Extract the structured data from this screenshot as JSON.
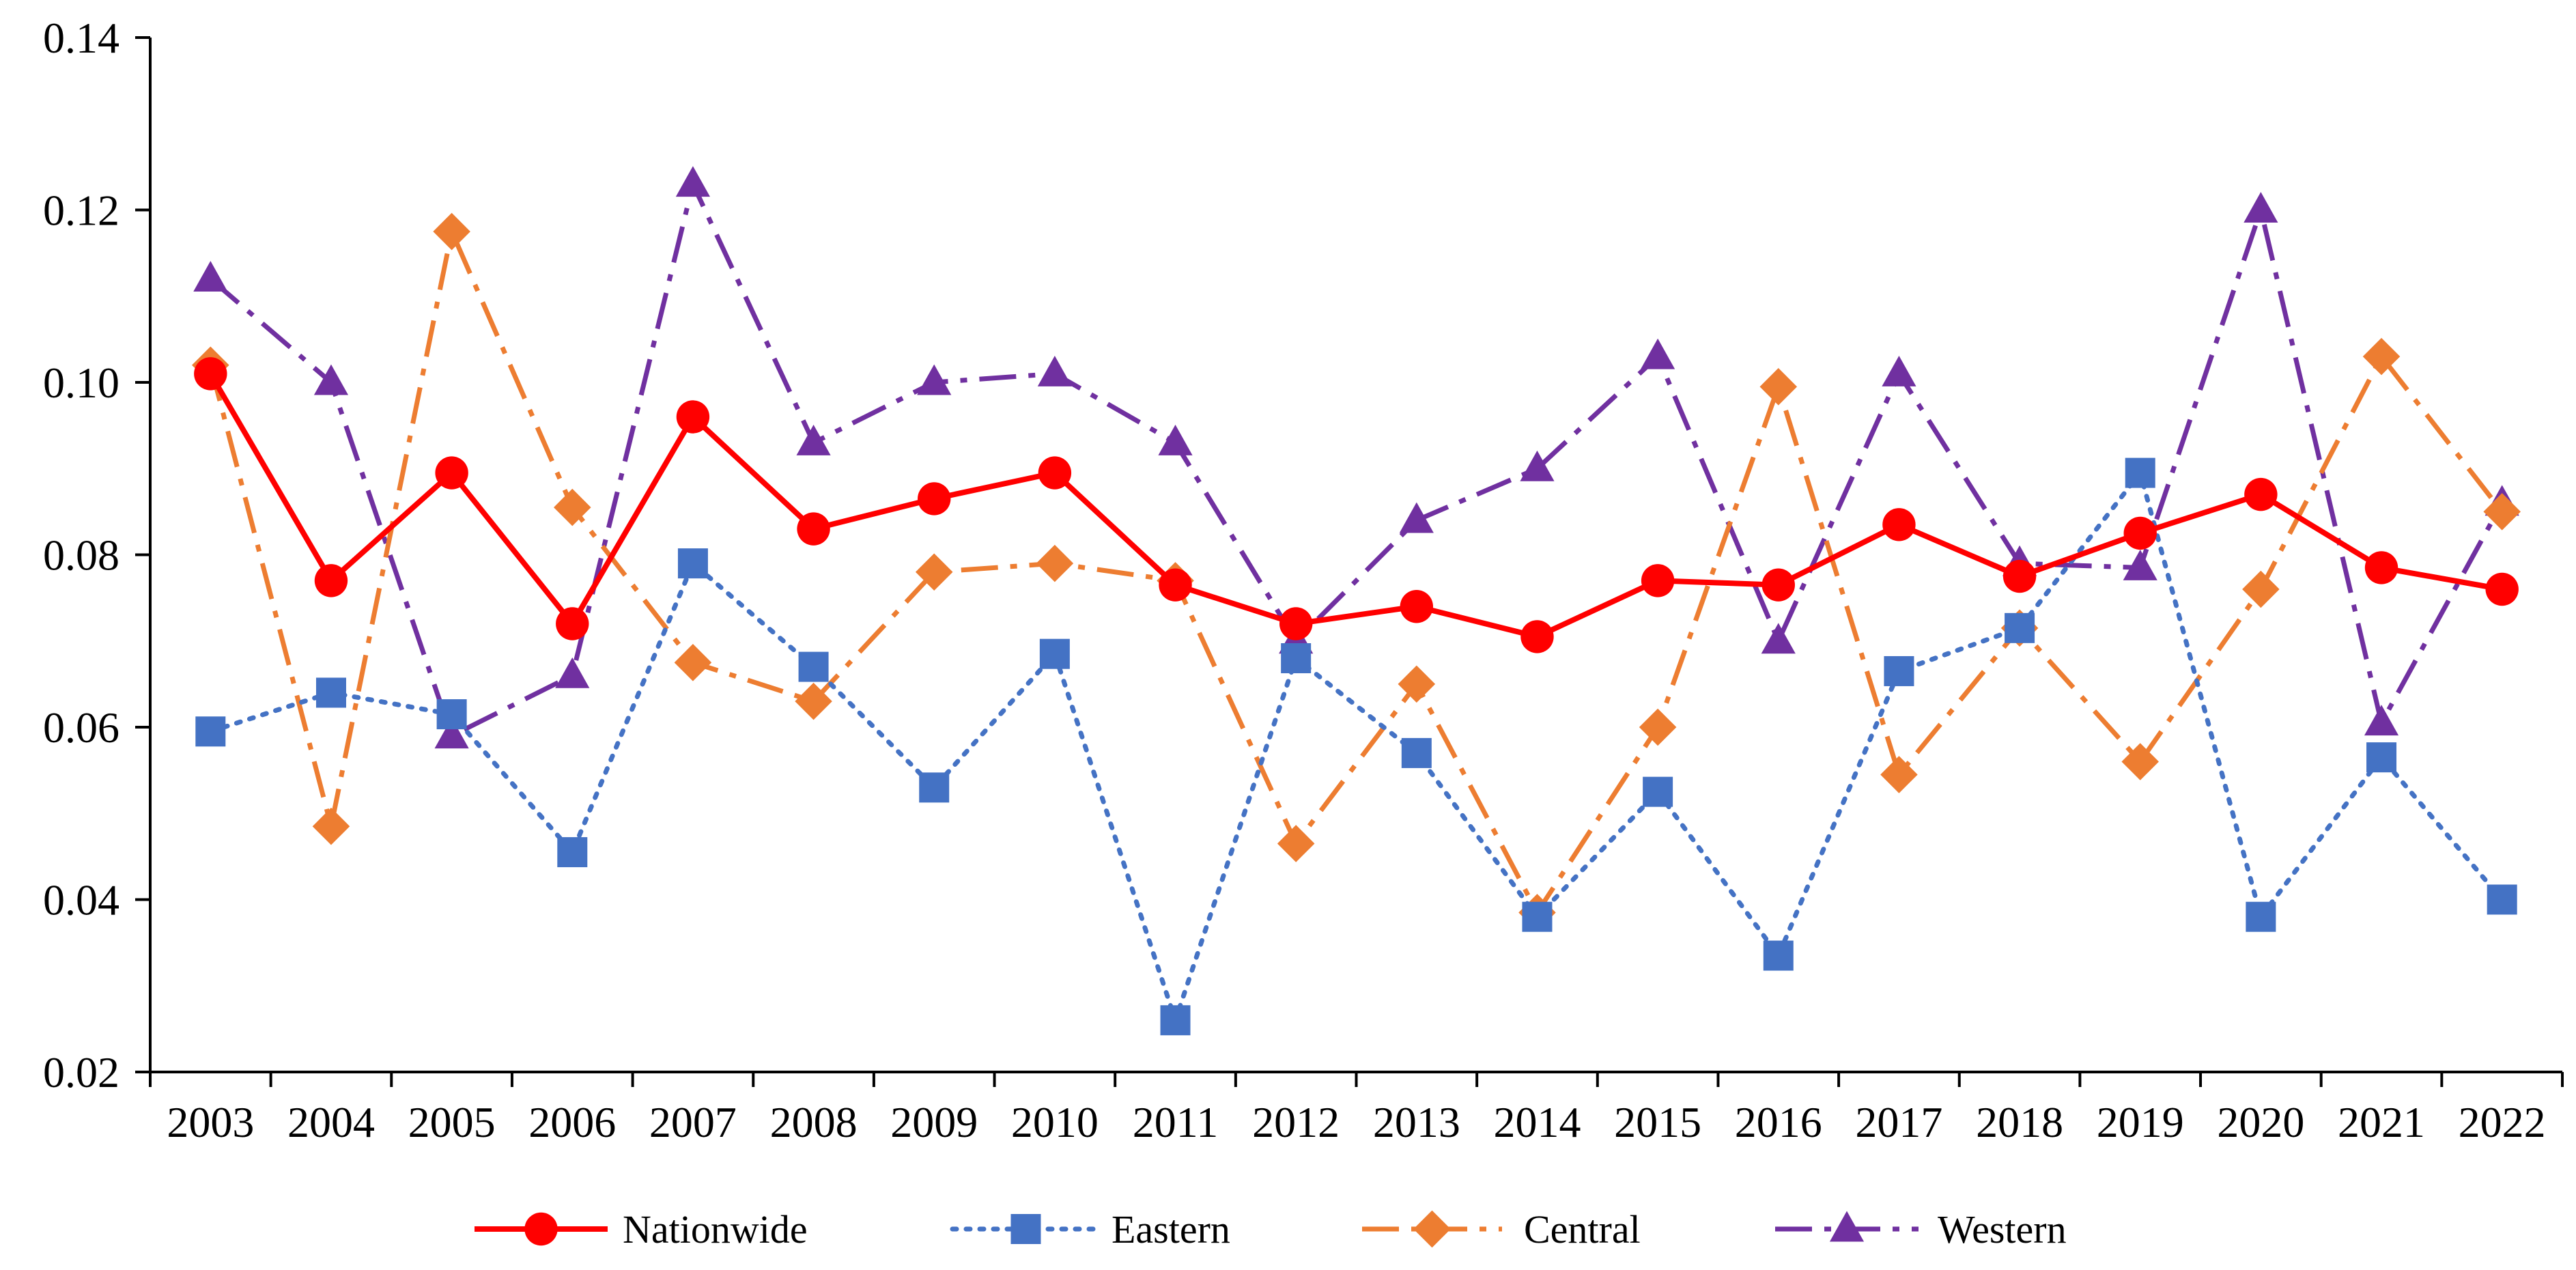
{
  "chart_data": {
    "type": "line",
    "title": "",
    "xlabel": "",
    "ylabel": "",
    "categories": [
      "2003",
      "2004",
      "2005",
      "2006",
      "2007",
      "2008",
      "2009",
      "2010",
      "2011",
      "2012",
      "2013",
      "2014",
      "2015",
      "2016",
      "2017",
      "2018",
      "2019",
      "2020",
      "2021",
      "2022"
    ],
    "ylim": [
      0.02,
      0.14
    ],
    "yticks": [
      "0.02",
      "0.04",
      "0.06",
      "0.08",
      "0.10",
      "0.12",
      "0.14"
    ],
    "grid": false,
    "legend_position": "bottom",
    "series": [
      {
        "name": "Nationwide",
        "color": "#ff0000",
        "marker": "circle",
        "line_style": "solid",
        "values": [
          0.101,
          0.077,
          0.0895,
          0.072,
          0.096,
          0.083,
          0.0865,
          0.0895,
          0.0765,
          0.072,
          0.074,
          0.0705,
          0.077,
          0.0765,
          0.0835,
          0.0775,
          0.0825,
          0.087,
          0.0785,
          0.076
        ]
      },
      {
        "name": "Eastern",
        "color": "#4472c4",
        "marker": "square",
        "line_style": "dotted",
        "values": [
          0.0595,
          0.064,
          0.0615,
          0.0455,
          0.079,
          0.067,
          0.053,
          0.0685,
          0.026,
          0.068,
          0.057,
          0.038,
          0.0525,
          0.0335,
          0.0665,
          0.0715,
          0.0895,
          0.038,
          0.0565,
          0.04
        ]
      },
      {
        "name": "Central",
        "color": "#ed7d31",
        "marker": "diamond",
        "line_style": "dashdot",
        "values": [
          0.102,
          0.0485,
          0.1175,
          0.0855,
          0.0675,
          0.063,
          0.078,
          0.079,
          0.077,
          0.0465,
          0.065,
          0.0385,
          0.06,
          0.0995,
          0.0545,
          0.0715,
          0.056,
          0.076,
          0.103,
          0.085
        ]
      },
      {
        "name": "Western",
        "color": "#7030a0",
        "marker": "triangle",
        "line_style": "dashdot",
        "values": [
          0.112,
          0.1,
          0.059,
          0.066,
          0.123,
          0.093,
          0.1,
          0.101,
          0.093,
          0.07,
          0.084,
          0.09,
          0.103,
          0.07,
          0.101,
          0.079,
          0.0785,
          0.12,
          0.0605,
          0.086
        ]
      }
    ]
  }
}
